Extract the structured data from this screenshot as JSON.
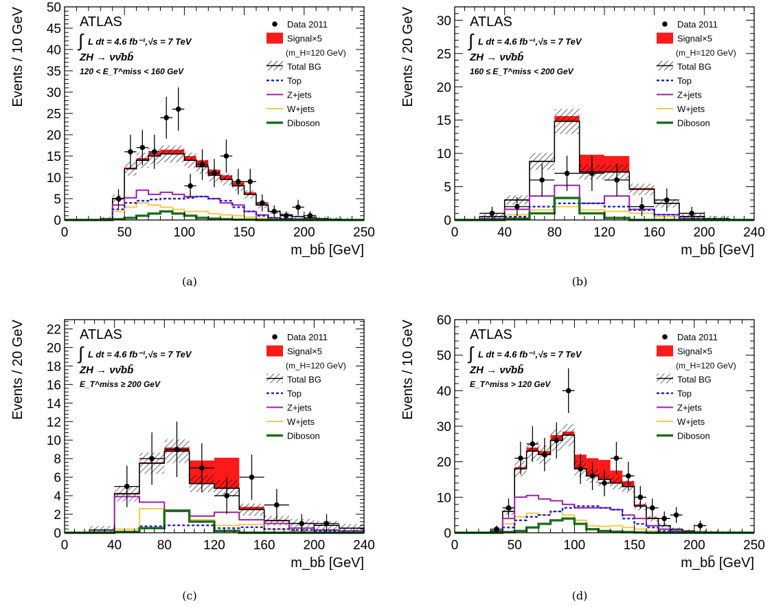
{
  "colors": {
    "frame": "#000000",
    "signal": "#ff1a1a",
    "top": "#1f1fd6",
    "zjets": "#9b1fa8",
    "wjets": "#f6c94a",
    "diboson": "#1b6e1b",
    "data": "#000000",
    "hatch": "#000000"
  },
  "chart_data": [
    {
      "type": "histogram",
      "panel_label": "(a)",
      "experiment": "ATLAS",
      "lumi_label": "L dt = 4.6 fb⁻¹,√s = 7 TeV",
      "process_label": "ZH → νν̄bb̄",
      "selection_label": "120 < E_T^miss < 160 GeV",
      "xlabel": "m_bb̄ [GeV]",
      "ylabel": "Events / 10 GeV",
      "xlim": [
        0,
        250
      ],
      "ylim": [
        0,
        50
      ],
      "xticks": [
        0,
        50,
        100,
        150,
        200,
        250
      ],
      "yticks": [
        0,
        5,
        10,
        15,
        20,
        25,
        30,
        35,
        40,
        45,
        50
      ],
      "legend": [
        "Data 2011",
        "Signal×5",
        "(m_H=120 GeV)",
        "Total BG",
        "Top",
        "Z+jets",
        "W+jets",
        "Diboson"
      ],
      "bin_edges": [
        0,
        10,
        20,
        30,
        40,
        50,
        60,
        70,
        80,
        90,
        100,
        110,
        120,
        130,
        140,
        150,
        160,
        170,
        180,
        190,
        200,
        210,
        220,
        230,
        240,
        250
      ],
      "total_bg": [
        0,
        0,
        0,
        0.3,
        5,
        12,
        14,
        15,
        15.5,
        15.5,
        14,
        12.5,
        10.5,
        9.5,
        8,
        6,
        3.5,
        2,
        1.2,
        0.8,
        0.5,
        0.3,
        0.2,
        0.1,
        0
      ],
      "signal_top": [
        0,
        0,
        0,
        0.3,
        5.2,
        12.3,
        14.5,
        15.8,
        16.5,
        16.5,
        15,
        14,
        11.8,
        10.5,
        8.8,
        6.5,
        3.8,
        2.1,
        1.3,
        0.8,
        0.5,
        0.3,
        0.2,
        0.1,
        0
      ],
      "top": [
        0,
        0,
        0,
        0.1,
        2.5,
        4,
        4.5,
        4.8,
        5,
        5,
        5.2,
        5.5,
        5,
        4.5,
        3,
        2,
        1,
        0.5,
        0.3,
        0.2,
        0.1,
        0.1,
        0,
        0,
        0
      ],
      "zjets": [
        0,
        0,
        0,
        0.2,
        3.5,
        5.2,
        7,
        6,
        6.5,
        6,
        5.5,
        5.5,
        5,
        4,
        3.5,
        2,
        1.2,
        0.5,
        0.3,
        0.2,
        0.1,
        0,
        0,
        0,
        0
      ],
      "wjets": [
        0,
        0,
        0,
        0.1,
        2,
        3,
        4,
        3.5,
        3,
        2.5,
        2,
        2,
        1.5,
        1.2,
        1,
        0.7,
        0.4,
        0.3,
        0.2,
        0.1,
        0,
        0,
        0,
        0,
        0
      ],
      "diboson": [
        0,
        0,
        0,
        0,
        0.2,
        0.5,
        1,
        1.5,
        2,
        1.5,
        1,
        0.5,
        0.3,
        0.2,
        0.1,
        0.1,
        0,
        0,
        0,
        0,
        0,
        0,
        0,
        0,
        0
      ],
      "data_x": [
        45,
        55,
        65,
        75,
        85,
        95,
        105,
        115,
        125,
        135,
        145,
        155,
        165,
        175,
        185,
        195,
        205
      ],
      "data_y": [
        5,
        16,
        17,
        16,
        24,
        26,
        8,
        13,
        11,
        15,
        9,
        9,
        4,
        2,
        1,
        3,
        1
      ]
    },
    {
      "type": "histogram",
      "panel_label": "(b)",
      "experiment": "ATLAS",
      "lumi_label": "L dt = 4.6 fb⁻¹,√s = 7 TeV",
      "process_label": "ZH → νν̄bb̄",
      "selection_label": "160 ≤ E_T^miss < 200 GeV",
      "xlabel": "m_bb̄ [GeV]",
      "ylabel": "Events / 20 GeV",
      "xlim": [
        0,
        240
      ],
      "ylim": [
        0,
        32
      ],
      "xticks": [
        0,
        40,
        80,
        120,
        160,
        200,
        240
      ],
      "yticks": [
        0,
        5,
        10,
        15,
        20,
        25,
        30
      ],
      "legend": [
        "Data 2011",
        "Signal×5",
        "(m_H=120 GeV)",
        "Total BG",
        "Top",
        "Z+jets",
        "W+jets",
        "Diboson"
      ],
      "bin_edges": [
        0,
        20,
        40,
        60,
        80,
        100,
        120,
        140,
        160,
        180,
        200,
        220,
        240
      ],
      "total_bg": [
        0,
        0.5,
        3,
        8.8,
        14.8,
        7.2,
        7.2,
        4.6,
        2.5,
        0.5,
        0.2,
        0
      ],
      "signal_top": [
        0,
        0.5,
        3.1,
        8.9,
        15.6,
        9.8,
        9.6,
        4.8,
        2.6,
        0.6,
        0.2,
        0
      ],
      "top": [
        0,
        0.1,
        0.5,
        2,
        2.5,
        2.5,
        2,
        1.5,
        0.8,
        0.2,
        0,
        0
      ],
      "zjets": [
        0,
        0.2,
        1.6,
        3.6,
        5.2,
        2.5,
        3.6,
        1.6,
        0.8,
        0.2,
        0,
        0
      ],
      "wjets": [
        0,
        0.1,
        0.8,
        1.5,
        2,
        1.5,
        1.3,
        1,
        0.5,
        0.2,
        0,
        0
      ],
      "diboson": [
        0,
        0,
        0.2,
        1,
        3.3,
        1,
        0.3,
        0,
        0,
        0,
        0,
        0
      ],
      "data_x": [
        30,
        50,
        70,
        90,
        110,
        130,
        150,
        170,
        190
      ],
      "data_y": [
        1,
        2,
        6,
        7,
        7,
        6,
        2,
        3,
        1
      ]
    },
    {
      "type": "histogram",
      "panel_label": "(c)",
      "experiment": "ATLAS",
      "lumi_label": "L dt = 4.6 fb⁻¹,√s = 7 TeV",
      "process_label": "ZH → νν̄bb̄",
      "selection_label": "E_T^miss ≥ 200 GeV",
      "xlabel": "m_bb̄ [GeV]",
      "ylabel": "Events / 20 GeV",
      "xlim": [
        0,
        240
      ],
      "ylim": [
        0,
        23
      ],
      "xticks": [
        0,
        40,
        80,
        120,
        160,
        200,
        240
      ],
      "yticks": [
        0,
        2,
        4,
        6,
        8,
        10,
        12,
        14,
        16,
        18,
        20,
        22
      ],
      "legend": [
        "Data 2011",
        "Signal×5",
        "(m_H=120 GeV)",
        "Total BG",
        "Top",
        "Z+jets",
        "W+jets",
        "Diboson"
      ],
      "bin_edges": [
        0,
        20,
        40,
        60,
        80,
        100,
        120,
        140,
        160,
        180,
        200,
        220,
        240
      ],
      "total_bg": [
        0,
        0.3,
        4.2,
        7.5,
        8.8,
        5.3,
        4.8,
        2.5,
        1.3,
        1,
        0.8,
        0.5
      ],
      "signal_top": [
        0,
        0.3,
        4.3,
        7.6,
        9.2,
        7.8,
        8.1,
        2.8,
        1.4,
        1,
        0.8,
        0.5
      ],
      "top": [
        0,
        0,
        0.1,
        0.7,
        0.8,
        0.8,
        0.5,
        0.6,
        0.4,
        0.3,
        0.2,
        0.1
      ],
      "zjets": [
        0,
        0.1,
        3.9,
        3.3,
        2.3,
        1.8,
        2.2,
        1.4,
        1,
        0.5,
        0.3,
        0.2
      ],
      "wjets": [
        0,
        0,
        0.4,
        2.6,
        2.3,
        1.4,
        0.8,
        0.9,
        0.4,
        0.2,
        0.1,
        0.1
      ],
      "diboson": [
        0,
        0,
        0.1,
        0.5,
        2.4,
        1.2,
        0.2,
        0,
        0,
        0,
        0,
        0
      ],
      "data_x": [
        50,
        70,
        90,
        110,
        130,
        150,
        170,
        190,
        210
      ],
      "data_y": [
        5,
        8,
        9,
        7,
        4,
        6,
        3,
        1,
        1
      ]
    },
    {
      "type": "histogram",
      "panel_label": "(d)",
      "experiment": "ATLAS",
      "lumi_label": "L dt = 4.6 fb⁻¹,√s = 7 TeV",
      "process_label": "ZH → νν̄bb̄",
      "selection_label": "E_T^miss > 120 GeV",
      "xlabel": "m_bb̄ [GeV]",
      "ylabel": "Events / 10 GeV",
      "xlim": [
        0,
        250
      ],
      "ylim": [
        0,
        60
      ],
      "xticks": [
        0,
        50,
        100,
        150,
        200,
        250
      ],
      "yticks": [
        0,
        10,
        20,
        30,
        40,
        50,
        60
      ],
      "legend": [
        "Data 2011",
        "Signal×5",
        "(m_H=120 GeV)",
        "Total BG",
        "Top",
        "Z+jets",
        "W+jets",
        "Diboson"
      ],
      "bin_edges": [
        0,
        10,
        20,
        30,
        40,
        50,
        60,
        70,
        80,
        90,
        100,
        110,
        120,
        130,
        140,
        150,
        160,
        170,
        180,
        190,
        200,
        210,
        220,
        230,
        240,
        250
      ],
      "total_bg": [
        0,
        0,
        0,
        0.5,
        6,
        18,
        23,
        22,
        26,
        27.5,
        18,
        16,
        15,
        14,
        13,
        7.5,
        4,
        2,
        1,
        0.5,
        0.3,
        0.2,
        0.1,
        0.1,
        0
      ],
      "signal_top": [
        0,
        0,
        0,
        0.5,
        6.2,
        18.5,
        24,
        23,
        27.5,
        28.5,
        22,
        21,
        20.5,
        17.5,
        14.5,
        8,
        4.3,
        2.1,
        1.1,
        0.5,
        0.3,
        0.2,
        0.1,
        0.1,
        0
      ],
      "top": [
        0,
        0,
        0,
        0.1,
        1.5,
        3.5,
        4.5,
        5,
        6,
        7,
        7.5,
        7.5,
        7,
        6.5,
        4,
        2.5,
        1.5,
        0.5,
        0.3,
        0.1,
        0,
        0,
        0,
        0,
        0
      ],
      "zjets": [
        0,
        0,
        0,
        0.2,
        4,
        10,
        10.5,
        9.5,
        9,
        8,
        7,
        7,
        7,
        6.5,
        5,
        4,
        2,
        1,
        0.5,
        0.2,
        0.1,
        0,
        0,
        0,
        0
      ],
      "wjets": [
        0,
        0,
        0,
        0.1,
        2.5,
        4.5,
        5.5,
        5,
        6,
        5,
        3.5,
        2,
        1.8,
        2,
        1.5,
        1,
        0.5,
        0.3,
        0.1,
        0.1,
        0,
        0,
        0,
        0,
        0
      ],
      "diboson": [
        0,
        0,
        0,
        0,
        0.2,
        0.5,
        1.5,
        2.5,
        3.5,
        4,
        2.5,
        1,
        0.5,
        0.3,
        0.2,
        0.1,
        0,
        0,
        0,
        0,
        0,
        0,
        0,
        0,
        0
      ],
      "data_x": [
        35,
        45,
        55,
        65,
        75,
        85,
        95,
        105,
        115,
        125,
        135,
        145,
        155,
        165,
        175,
        185,
        205
      ],
      "data_y": [
        1,
        7,
        21,
        25,
        22,
        26,
        40,
        18,
        16,
        14,
        21,
        16,
        10,
        7,
        4,
        5,
        2
      ]
    }
  ]
}
